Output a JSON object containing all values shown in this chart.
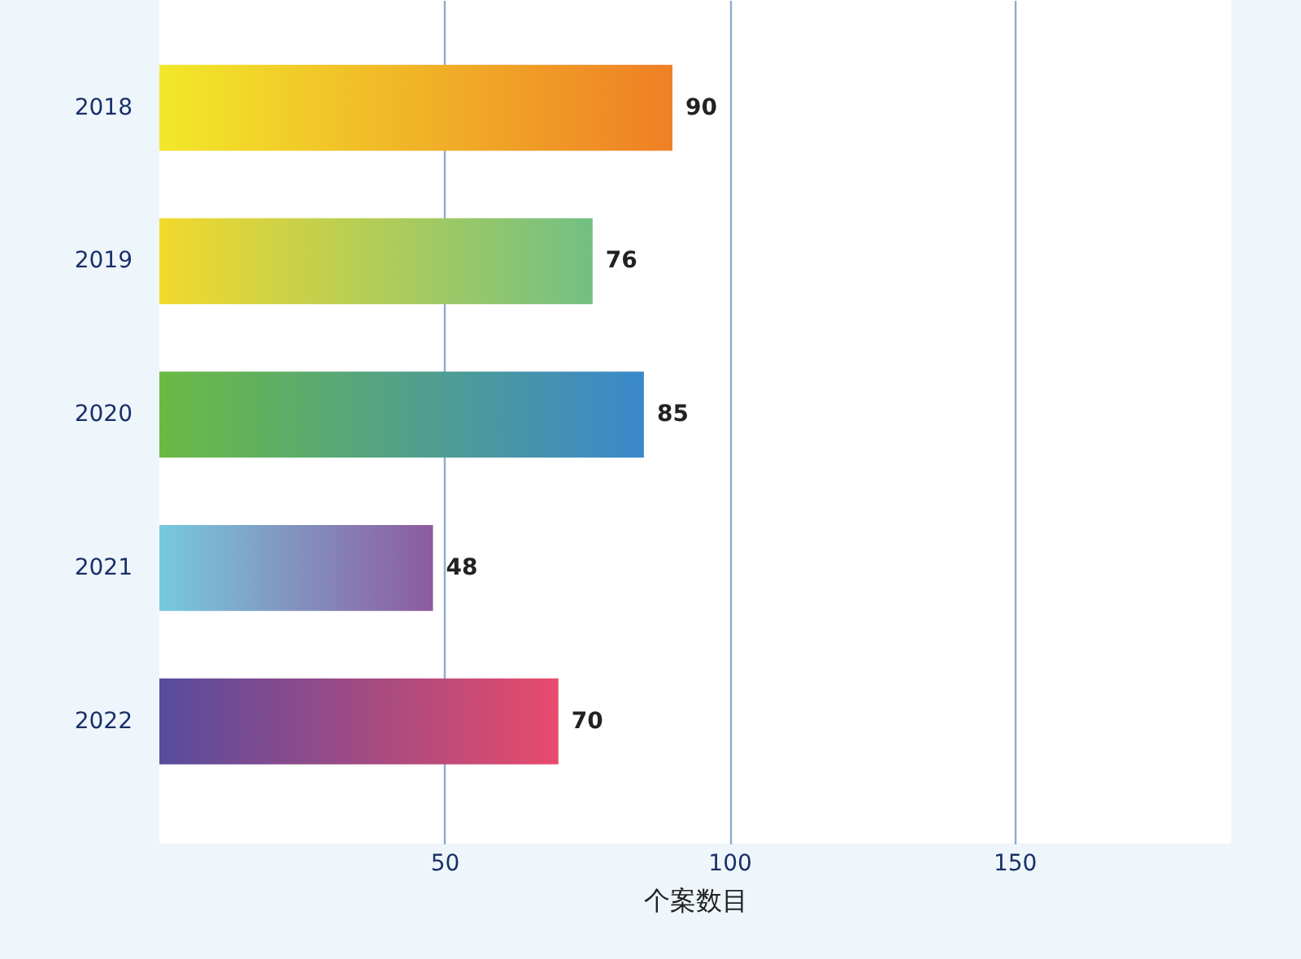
{
  "chart_data": {
    "type": "bar",
    "orientation": "horizontal",
    "categories": [
      "2018",
      "2019",
      "2020",
      "2021",
      "2022"
    ],
    "values": [
      90,
      76,
      85,
      48,
      70
    ],
    "colors": [
      [
        "#f2e82a",
        "#ef7f25"
      ],
      [
        "#f2d92c",
        "#72c083"
      ],
      [
        "#6bba43",
        "#3a88cc"
      ],
      [
        "#76cade",
        "#8d5aa0"
      ],
      [
        "#574c9c",
        "#e84a6c"
      ]
    ],
    "xlabel": "个案数目",
    "xlim": [
      0,
      188
    ],
    "xticks": [
      50,
      100,
      150
    ],
    "grid": "x",
    "data_labels": true
  }
}
